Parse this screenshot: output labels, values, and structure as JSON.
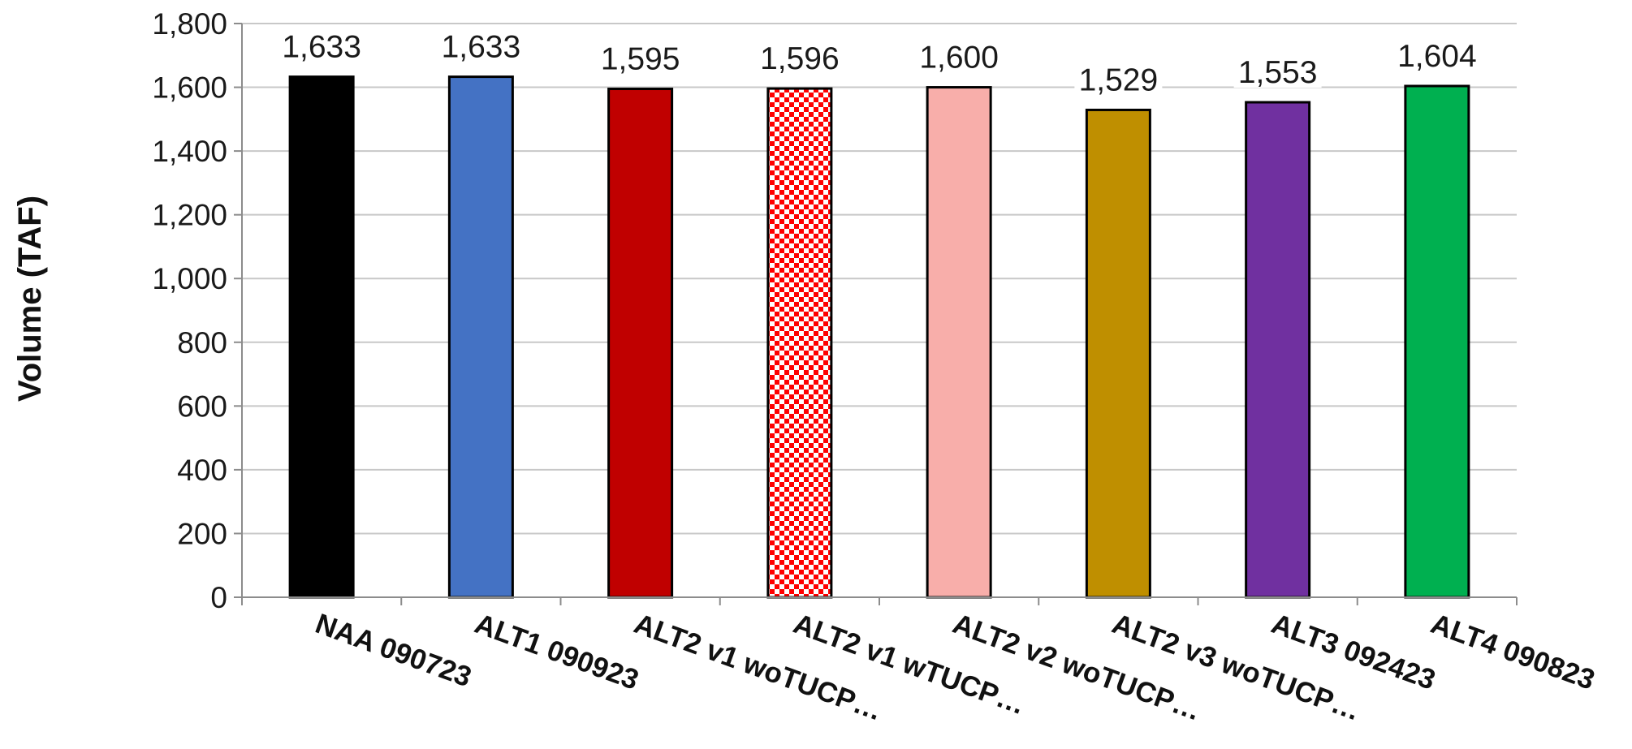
{
  "chart_data": {
    "type": "bar",
    "title": "",
    "xlabel": "",
    "ylabel": "Volume (TAF)",
    "ylim": [
      0,
      1800
    ],
    "yticks": [
      0,
      200,
      400,
      600,
      800,
      1000,
      1200,
      1400,
      1600,
      1800
    ],
    "ytick_labels": [
      "0",
      "200",
      "400",
      "600",
      "800",
      "1,000",
      "1,200",
      "1,400",
      "1,600",
      "1,800"
    ],
    "grid": true,
    "legend": "none",
    "categories": [
      "NAA 090723",
      "ALT1 090923",
      "ALT2 v1 woTUCP…",
      "ALT2 v1 wTUCP…",
      "ALT2 v2 woTUCP…",
      "ALT2 v3 woTUCP…",
      "ALT3 092423",
      "ALT4 090823"
    ],
    "values": [
      1633,
      1633,
      1595,
      1596,
      1600,
      1529,
      1553,
      1604
    ],
    "value_labels": [
      "1,633",
      "1,633",
      "1,595",
      "1,596",
      "1,600",
      "1,529",
      "1,553",
      "1,604"
    ],
    "colors": [
      "#000000",
      "#4472c4",
      "#c00000",
      "#ff0000",
      "#f8aeaa",
      "#bf8f00",
      "#7030a0",
      "#00b050"
    ],
    "patterns": [
      "solid",
      "solid",
      "solid",
      "checker",
      "solid",
      "solid",
      "solid",
      "solid"
    ]
  }
}
